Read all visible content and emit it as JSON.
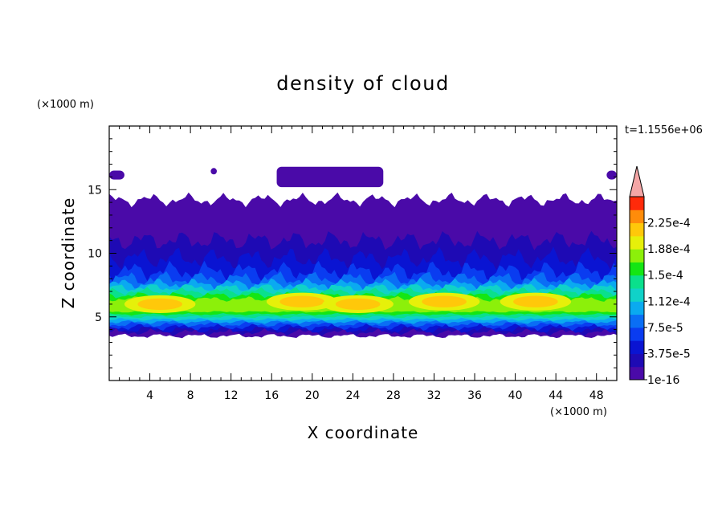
{
  "chart_data": {
    "type": "heatmap",
    "title": "density of cloud",
    "xlabel": "X coordinate",
    "ylabel": "Z coordinate",
    "x_unit": "(×1000 m)",
    "y_unit": "(×1000 m)",
    "time_label": "t=1.1556e+06",
    "xlim": [
      0,
      50
    ],
    "ylim": [
      0,
      20
    ],
    "x_ticks": [
      "4",
      "8",
      "12",
      "16",
      "20",
      "24",
      "28",
      "32",
      "36",
      "40",
      "44",
      "48"
    ],
    "y_ticks": [
      "5",
      "10",
      "15"
    ],
    "colorbar": {
      "labels": [
        "1e-16",
        "3.75e-5",
        "7.5e-5",
        "1.12e-4",
        "1.5e-4",
        "1.88e-4",
        "2.25e-4"
      ],
      "levels": [
        1e-16,
        1.875e-05,
        3.75e-05,
        5.625e-05,
        7.5e-05,
        9.375e-05,
        0.0001125,
        0.00013125,
        0.00015,
        0.00016875,
        0.0001875,
        0.00020625,
        0.000225,
        0.00024375
      ],
      "colors": [
        "#4a0aa8",
        "#1e0ab4",
        "#0a14d2",
        "#0a3cf0",
        "#0a6ef5",
        "#0aaaf0",
        "#10d2c8",
        "#0ae08c",
        "#14e614",
        "#8cf00a",
        "#e6f00a",
        "#ffc80a",
        "#ff8c0a",
        "#ff2a0a"
      ],
      "extend_color": "#f4a6a6"
    },
    "layers": [
      {
        "level": "1e-16",
        "z_bottom": 3.5,
        "z_top": 14.3,
        "note": "cloud base to top, with upper patches near z 16"
      },
      {
        "level": "3.75e-5",
        "z_bottom": 4.0,
        "z_top": 11.0
      },
      {
        "level": "7.5e-5",
        "z_bottom": 4.3,
        "z_top": 8.5
      },
      {
        "level": "1.12e-4",
        "z_bottom": 4.6,
        "z_top": 7.3
      },
      {
        "level": "1.5e-4",
        "z_bottom": 5.0,
        "z_top": 6.8
      },
      {
        "level": "1.88e-4",
        "z_bottom": 5.6,
        "z_top": 6.8,
        "x_ranges": [
          [
            16,
            24
          ],
          [
            30,
            36
          ],
          [
            40,
            44
          ]
        ]
      }
    ]
  }
}
